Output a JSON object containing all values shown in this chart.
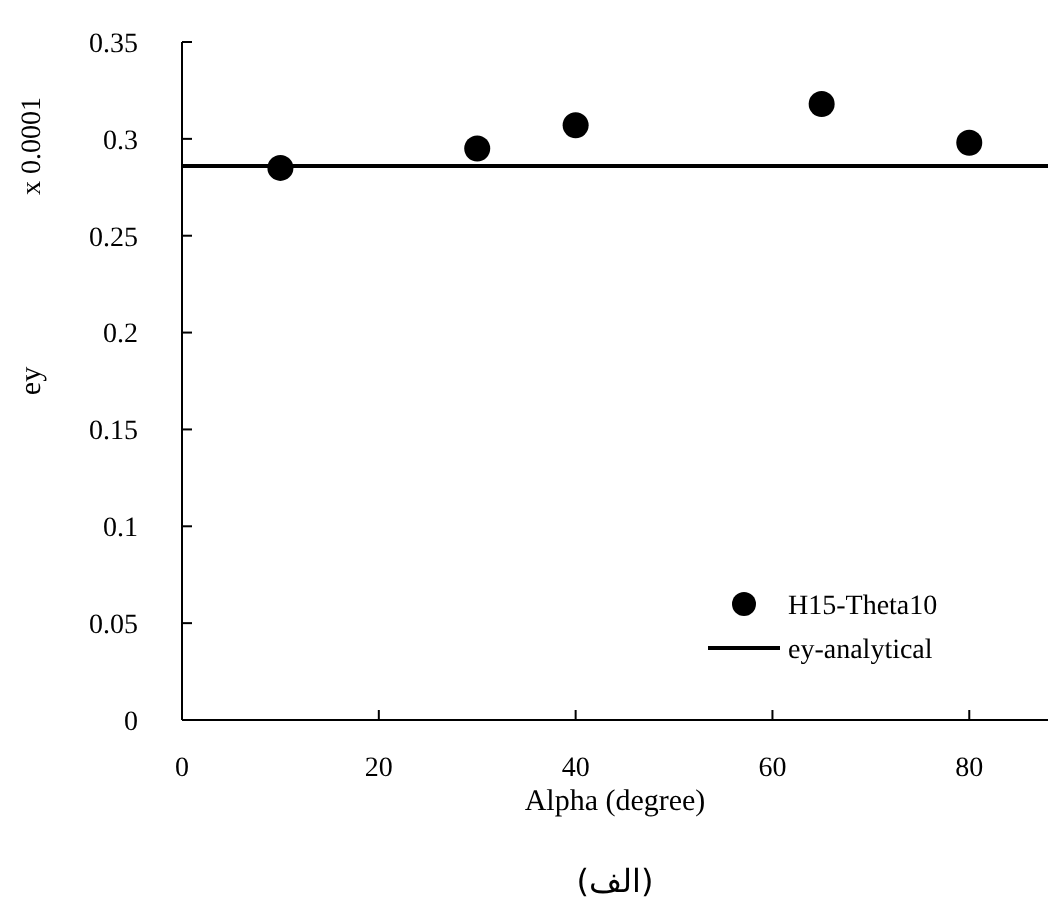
{
  "chart_data": {
    "type": "scatter",
    "xlabel": "Alpha (degree)",
    "ylabel": "ey",
    "annotations": [
      "x 0.0001",
      "(الف)"
    ],
    "xlim": [
      0,
      88
    ],
    "xticks": [
      0,
      20,
      40,
      60,
      80
    ],
    "ylim": [
      0,
      0.35
    ],
    "yticks": [
      0,
      0.05,
      0.1,
      0.15,
      0.2,
      0.25,
      0.3,
      0.35
    ],
    "legend": "bottom right",
    "grid": false,
    "series": [
      {
        "name": "H15-Theta10",
        "marker": "circle",
        "color": "#000000",
        "x": [
          10,
          30,
          40,
          65,
          80
        ],
        "values": [
          0.285,
          0.295,
          0.307,
          0.318,
          0.298
        ]
      },
      {
        "name": "ey-analytical",
        "type": "line",
        "marker": "none",
        "line_style": "solid",
        "color": "#000000",
        "x": [
          0,
          88
        ],
        "values": [
          0.286,
          0.286
        ]
      }
    ]
  }
}
